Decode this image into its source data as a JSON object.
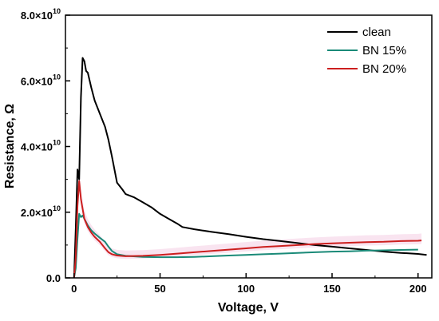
{
  "chart_data": {
    "type": "line",
    "xlabel": "Voltage, V",
    "ylabel": "Resistance, Ω",
    "xlim": [
      -5,
      208
    ],
    "ylim": [
      0,
      80000000000
    ],
    "x_ticks": [
      0,
      50,
      100,
      150,
      200
    ],
    "y_ticks": [
      {
        "value": 0,
        "mantissa": "0.0",
        "exponent": ""
      },
      {
        "value": 20000000000,
        "mantissa": "2.0×10",
        "exponent": "10"
      },
      {
        "value": 40000000000,
        "mantissa": "4.0×10",
        "exponent": "10"
      },
      {
        "value": 60000000000,
        "mantissa": "6.0×10",
        "exponent": "10"
      },
      {
        "value": 80000000000,
        "mantissa": "8.0×10",
        "exponent": "10"
      }
    ],
    "grid": false,
    "legend_position": "top-right",
    "series": [
      {
        "name": "clean",
        "color": "#000000",
        "points": [
          [
            0,
            0
          ],
          [
            1,
            15000000000.0
          ],
          [
            2,
            33000000000.0
          ],
          [
            3,
            30000000000.0
          ],
          [
            4,
            55000000000.0
          ],
          [
            5,
            67000000000.0
          ],
          [
            6,
            66000000000.0
          ],
          [
            7,
            63000000000.0
          ],
          [
            8,
            62500000000.0
          ],
          [
            10,
            58000000000.0
          ],
          [
            12,
            54000000000.0
          ],
          [
            15,
            50000000000.0
          ],
          [
            18,
            46000000000.0
          ],
          [
            20,
            42000000000.0
          ],
          [
            22,
            37000000000.0
          ],
          [
            25,
            29000000000.0
          ],
          [
            28,
            27000000000.0
          ],
          [
            30,
            25500000000.0
          ],
          [
            35,
            24500000000.0
          ],
          [
            40,
            23000000000.0
          ],
          [
            45,
            21500000000.0
          ],
          [
            50,
            19500000000.0
          ],
          [
            55,
            18000000000.0
          ],
          [
            60,
            16500000000.0
          ],
          [
            63,
            15500000000.0
          ],
          [
            70,
            14800000000.0
          ],
          [
            80,
            14000000000.0
          ],
          [
            90,
            13300000000.0
          ],
          [
            100,
            12500000000.0
          ],
          [
            110,
            11800000000.0
          ],
          [
            120,
            11200000000.0
          ],
          [
            130,
            10600000000.0
          ],
          [
            140,
            10000000000.0
          ],
          [
            150,
            9500000000.0
          ],
          [
            160,
            9000000000.0
          ],
          [
            170,
            8500000000.0
          ],
          [
            180,
            8000000000.0
          ],
          [
            190,
            7600000000.0
          ],
          [
            200,
            7300000000.0
          ],
          [
            205,
            7000000000.0
          ]
        ]
      },
      {
        "name": "BN 15%",
        "color": "#1a8a78",
        "points": [
          [
            0,
            0
          ],
          [
            1,
            3000000000.0
          ],
          [
            2,
            12000000000.0
          ],
          [
            3,
            19500000000.0
          ],
          [
            4,
            18500000000.0
          ],
          [
            5,
            19000000000.0
          ],
          [
            6,
            18000000000.0
          ],
          [
            8,
            16000000000.0
          ],
          [
            10,
            14500000000.0
          ],
          [
            12,
            13500000000.0
          ],
          [
            15,
            12200000000.0
          ],
          [
            18,
            11000000000.0
          ],
          [
            20,
            9500000000.0
          ],
          [
            22,
            8200000000.0
          ],
          [
            25,
            7200000000.0
          ],
          [
            30,
            6700000000.0
          ],
          [
            40,
            6400000000.0
          ],
          [
            50,
            6300000000.0
          ],
          [
            60,
            6300000000.0
          ],
          [
            70,
            6400000000.0
          ],
          [
            80,
            6600000000.0
          ],
          [
            90,
            6800000000.0
          ],
          [
            100,
            7000000000.0
          ],
          [
            110,
            7200000000.0
          ],
          [
            120,
            7400000000.0
          ],
          [
            130,
            7600000000.0
          ],
          [
            140,
            7800000000.0
          ],
          [
            150,
            8000000000.0
          ],
          [
            160,
            8100000000.0
          ],
          [
            170,
            8300000000.0
          ],
          [
            180,
            8400000000.0
          ],
          [
            190,
            8500000000.0
          ],
          [
            200,
            8600000000.0
          ]
        ]
      },
      {
        "name": "BN 20%",
        "color": "#cc1f1f",
        "points": [
          [
            0,
            0
          ],
          [
            1,
            6000000000.0
          ],
          [
            2,
            22000000000.0
          ],
          [
            3,
            29500000000.0
          ],
          [
            4,
            24000000000.0
          ],
          [
            5,
            21000000000.0
          ],
          [
            6,
            18000000000.0
          ],
          [
            8,
            15500000000.0
          ],
          [
            10,
            13800000000.0
          ],
          [
            12,
            12500000000.0
          ],
          [
            15,
            11000000000.0
          ],
          [
            18,
            9000000000.0
          ],
          [
            20,
            7800000000.0
          ],
          [
            22,
            7200000000.0
          ],
          [
            25,
            6800000000.0
          ],
          [
            30,
            6600000000.0
          ],
          [
            40,
            6700000000.0
          ],
          [
            50,
            7000000000.0
          ],
          [
            60,
            7400000000.0
          ],
          [
            70,
            7800000000.0
          ],
          [
            80,
            8200000000.0
          ],
          [
            90,
            8600000000.0
          ],
          [
            100,
            9000000000.0
          ],
          [
            110,
            9400000000.0
          ],
          [
            120,
            9700000000.0
          ],
          [
            130,
            10000000000.0
          ],
          [
            140,
            10300000000.0
          ],
          [
            150,
            10500000000.0
          ],
          [
            160,
            10700000000.0
          ],
          [
            170,
            10900000000.0
          ],
          [
            180,
            11000000000.0
          ],
          [
            190,
            11200000000.0
          ],
          [
            200,
            11300000000.0
          ],
          [
            202,
            11400000000.0
          ]
        ]
      }
    ]
  }
}
